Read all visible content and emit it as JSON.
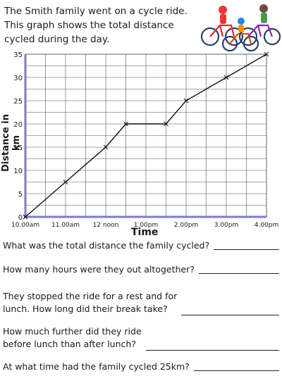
{
  "intro": "The Smith family went on a cycle ride. This graph shows the total distance cycled during the day.",
  "questions": [
    "What was the total distance the family cycled?",
    "How many hours were they out altogether?",
    "They stopped the ride for a rest and for\nlunch. How long did their break take?",
    "How much further did they ride\nbefore lunch than after lunch?",
    "At what time had the family cycled 25km?"
  ],
  "colors": {
    "axis": "#7a7fc0",
    "grid": "#555555",
    "line": "#111111"
  },
  "chart_data": {
    "type": "line",
    "xlabel": "Time",
    "ylabel": "Distance in km",
    "x_tick_labels": [
      "10.00am",
      "11.00am",
      "12 noon",
      "1.00pm",
      "2.00pm",
      "3.00pm",
      "4.00pm"
    ],
    "y_tick_labels": [
      "0",
      "5",
      "10",
      "15",
      "20",
      "25",
      "30",
      "35"
    ],
    "xlim": [
      "10.00am",
      "4.00pm"
    ],
    "ylim": [
      0,
      35
    ],
    "grid": true,
    "series": [
      {
        "x": [
          "10.00am",
          "11.00am",
          "12.00pm",
          "12.30pm",
          "1.30pm",
          "2.00pm",
          "3.00pm",
          "4.00pm"
        ],
        "y": [
          0,
          7.5,
          15,
          20,
          20,
          25,
          30,
          35
        ]
      }
    ]
  }
}
